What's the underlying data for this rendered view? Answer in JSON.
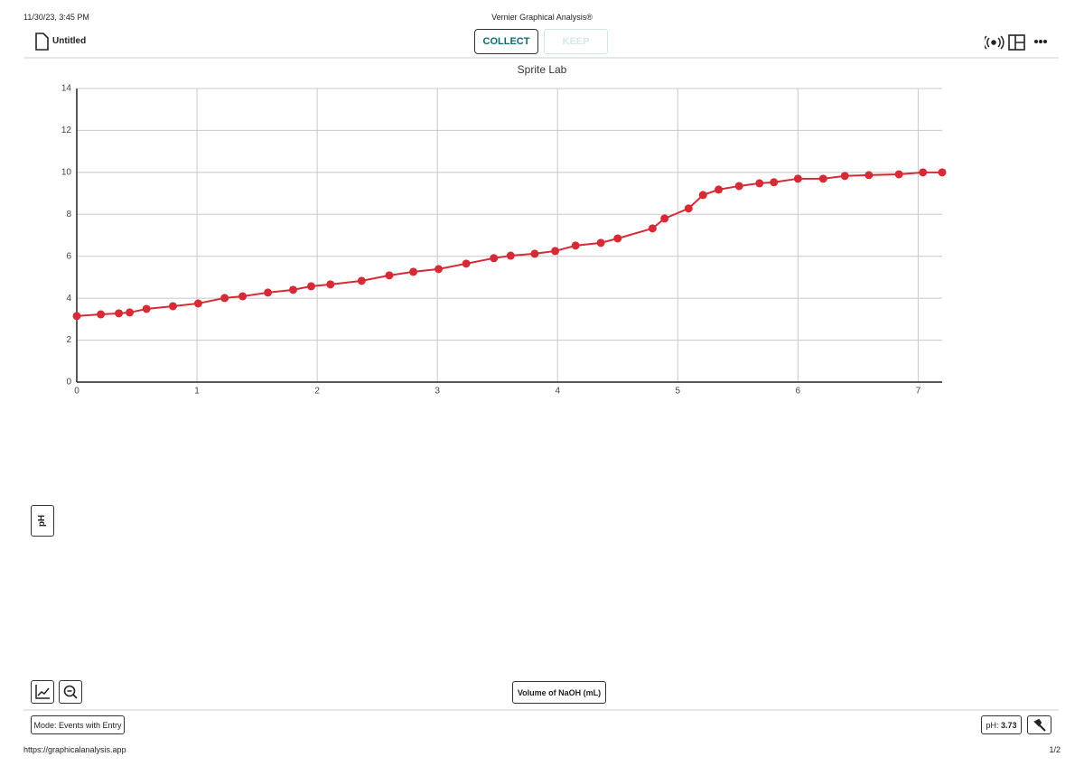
{
  "print_header": {
    "date": "11/30/23, 3:45 PM",
    "title": "Vernier Graphical Analysis®"
  },
  "toolbar": {
    "file_name": "Untitled",
    "collect": "COLLECT",
    "keep": "KEEP"
  },
  "chart_data": {
    "type": "line",
    "title": "Sprite Lab",
    "x_label": "Volume of NaOH (mL)",
    "y_label": "pH",
    "x": [
      0,
      0.2,
      0.35,
      0.44,
      0.58,
      0.8,
      1.01,
      1.23,
      1.38,
      1.59,
      1.8,
      1.95,
      2.11,
      2.37,
      2.6,
      2.8,
      3.01,
      3.24,
      3.47,
      3.61,
      3.81,
      3.98,
      4.15,
      4.36,
      4.5,
      4.79,
      4.89,
      5.09,
      5.21,
      5.34,
      5.51,
      5.68,
      5.8,
      6.0,
      6.21,
      6.39,
      6.59,
      6.84,
      7.04,
      7.2
    ],
    "values": [
      3.15,
      3.23,
      3.28,
      3.32,
      3.49,
      3.62,
      3.75,
      4.01,
      4.09,
      4.27,
      4.4,
      4.57,
      4.66,
      4.83,
      5.09,
      5.26,
      5.39,
      5.65,
      5.91,
      6.03,
      6.12,
      6.25,
      6.51,
      6.64,
      6.85,
      7.33,
      7.8,
      8.28,
      8.92,
      9.18,
      9.35,
      9.48,
      9.53,
      9.7,
      9.7,
      9.83,
      9.87,
      9.91,
      10.0,
      10.0
    ],
    "color": "#d62a36",
    "xlim": [
      0,
      7.2
    ],
    "ylim": [
      0,
      14
    ],
    "xticks": [
      0,
      1,
      2,
      3,
      4,
      5,
      6,
      7
    ],
    "yticks": [
      0,
      2,
      4,
      6,
      8,
      10,
      12,
      14
    ],
    "grid": true
  },
  "status_bar": {
    "mode": "Mode: Events with Entry",
    "meter_label": "pH:",
    "meter_value": "3.73"
  },
  "print_footer": {
    "url": "https://graphicalanalysis.app",
    "page": "1/2"
  }
}
